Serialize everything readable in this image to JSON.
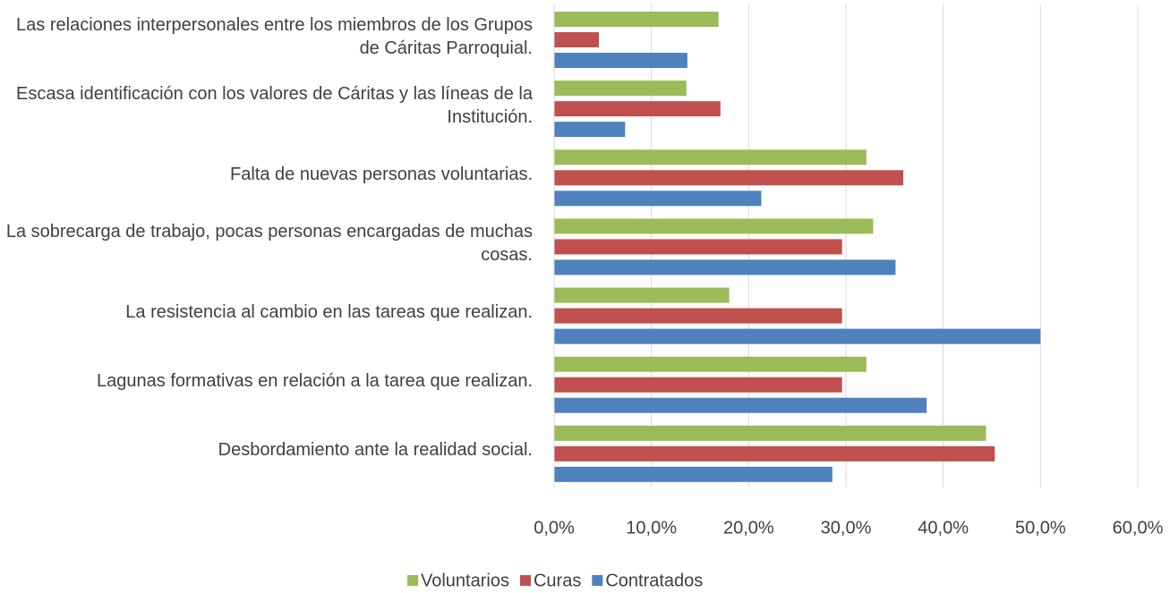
{
  "chart_data": {
    "type": "bar",
    "orientation": "horizontal",
    "categories": [
      "Las relaciones interpersonales entre los miembros de los Grupos de Cáritas Parroquial.",
      "Escasa identificación con los valores de Cáritas y las líneas de la Institución.",
      "Falta de nuevas personas voluntarias.",
      "La sobrecarga de trabajo, pocas personas encargadas de muchas cosas.",
      "La resistencia al cambio en las tareas que realizan.",
      "Lagunas formativas en relación a la tarea que realizan.",
      "Desbordamiento ante la realidad social."
    ],
    "series": [
      {
        "name": "Voluntarios",
        "color": "#9bbb59",
        "values": [
          16.9,
          13.6,
          32.1,
          32.8,
          18.0,
          32.1,
          44.4
        ]
      },
      {
        "name": "Curas",
        "color": "#c0504d",
        "values": [
          4.6,
          17.1,
          35.9,
          29.6,
          29.6,
          29.6,
          45.3
        ]
      },
      {
        "name": "Contratados",
        "color": "#4f81bd",
        "values": [
          13.7,
          7.3,
          21.3,
          35.1,
          50.0,
          38.3,
          28.6
        ]
      }
    ],
    "xlim": [
      0,
      60
    ],
    "xticks": [
      {
        "value": 0,
        "label": "0,0%"
      },
      {
        "value": 10,
        "label": "10,0%"
      },
      {
        "value": 20,
        "label": "20,0%"
      },
      {
        "value": 30,
        "label": "30,0%"
      },
      {
        "value": 40,
        "label": "40,0%"
      },
      {
        "value": 50,
        "label": "50,0%"
      },
      {
        "value": 60,
        "label": "60,0%"
      }
    ],
    "grid": true,
    "legend": "bottom"
  }
}
